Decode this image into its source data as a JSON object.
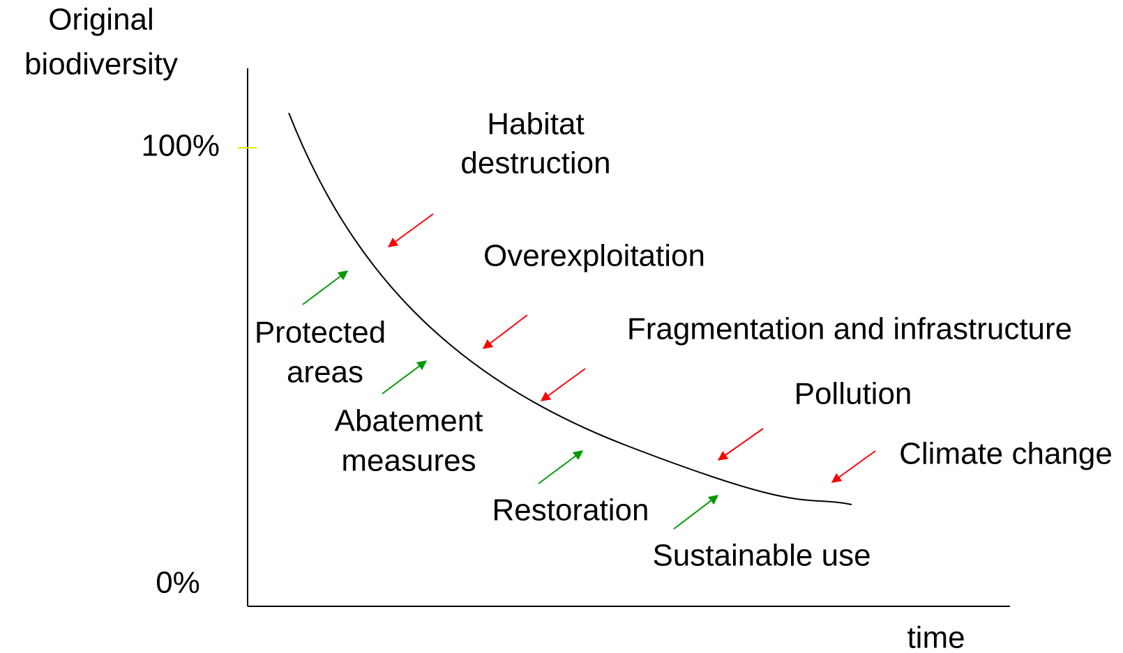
{
  "axes": {
    "y_title": [
      "Original",
      "biodiversity"
    ],
    "x_title": "time",
    "y_top": "100%",
    "y_bottom": "0%"
  },
  "pressures": [
    {
      "label": [
        "Habitat",
        "destruction"
      ]
    },
    {
      "label": [
        "Overexploitation"
      ]
    },
    {
      "label": [
        "Fragmentation and infrastructure"
      ]
    },
    {
      "label": [
        "Pollution"
      ]
    },
    {
      "label": [
        "Climate change"
      ]
    }
  ],
  "responses": [
    {
      "label": [
        "Protected",
        "areas"
      ]
    },
    {
      "label": [
        "Abatement",
        "measures"
      ]
    },
    {
      "label": [
        "Restoration"
      ]
    },
    {
      "label": [
        "Sustainable use"
      ]
    }
  ]
}
